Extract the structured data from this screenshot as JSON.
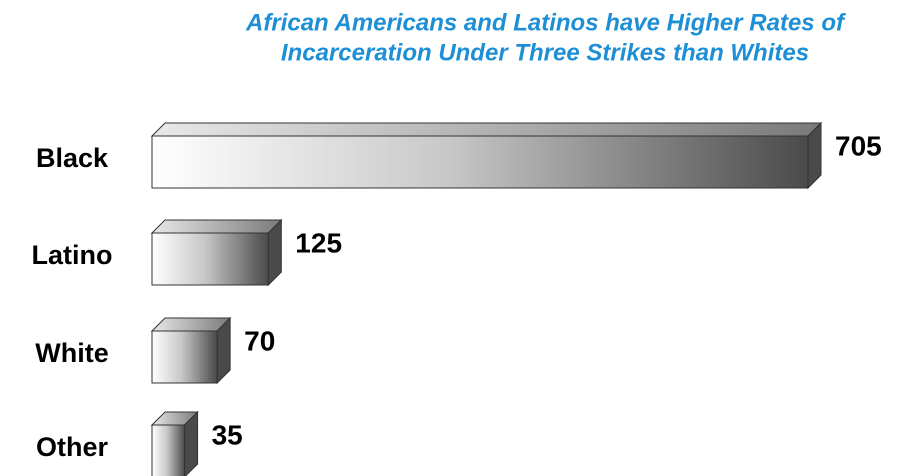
{
  "chart_data": {
    "type": "bar",
    "orientation": "horizontal",
    "title": [
      "African Americans and Latinos have Higher Rates of",
      "Incarceration Under Three Strikes than Whites"
    ],
    "title_color": "#1e8fd5",
    "categories": [
      "Black",
      "Latino",
      "White",
      "Other"
    ],
    "values": [
      705,
      125,
      70,
      35
    ],
    "color": "#4a4a4a"
  }
}
